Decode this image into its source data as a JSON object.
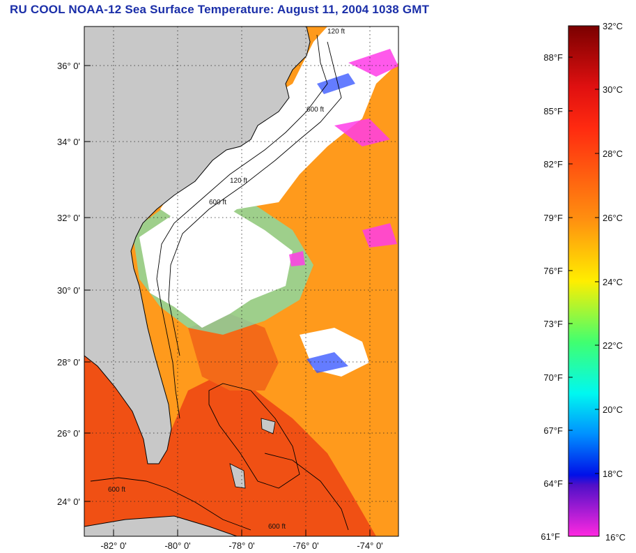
{
  "title": "RU COOL  NOAA-12  Sea Surface Temperature:  August 11, 2004 1038 GMT",
  "map": {
    "lat_labels": [
      "36° 0'",
      "34° 0'",
      "32° 0'",
      "30° 0'",
      "28° 0'",
      "26° 0'",
      "24° 0'"
    ],
    "lon_labels": [
      "-82° 0'",
      "-80° 0'",
      "-78° 0'",
      "-76° 0'",
      "-74° 0'"
    ],
    "depth_labels": [
      "120 ft",
      "600 ft"
    ],
    "colors": {
      "land": "#c8c8c8",
      "cloud": "#ffffff",
      "warm": "#f05a14",
      "mid": "#ff9a18"
    }
  },
  "colorbar": {
    "celsius_labels": [
      "32°C",
      "30°C",
      "28°C",
      "26°C",
      "24°C",
      "22°C",
      "20°C",
      "18°C",
      "16°C"
    ],
    "fahrenheit_labels": [
      "88°F",
      "85°F",
      "82°F",
      "79°F",
      "76°F",
      "73°F",
      "70°F",
      "67°F",
      "64°F",
      "61°F"
    ]
  }
}
